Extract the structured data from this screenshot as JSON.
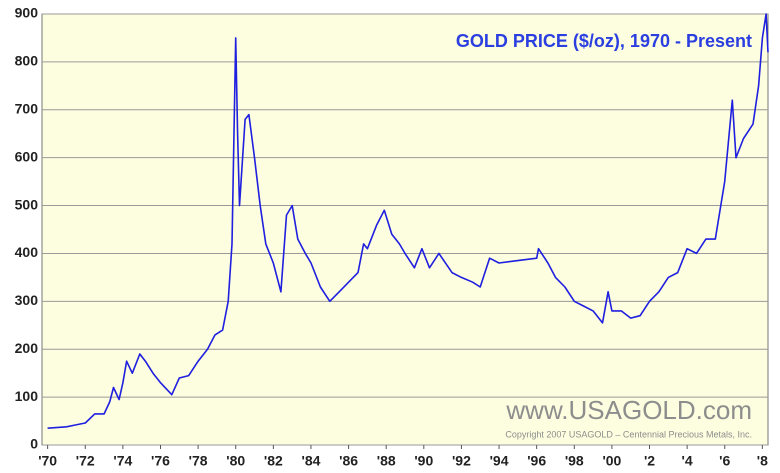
{
  "chart_data": {
    "type": "line",
    "title": "GOLD PRICE ($/oz), 1970 - Present",
    "watermark": "www.USAGOLD.com",
    "copyright": "Copyright 2007 USAGOLD – Centennial Precious Metals, Inc.",
    "x": [
      1970,
      1971,
      1971.5,
      1972,
      1972.5,
      1973,
      1973.3,
      1973.5,
      1973.8,
      1974,
      1974.2,
      1974.5,
      1974.9,
      1975.2,
      1975.6,
      1976,
      1976.6,
      1977,
      1977.5,
      1978,
      1978.5,
      1978.9,
      1979.3,
      1979.6,
      1979.8,
      1980,
      1980.1,
      1980.2,
      1980.5,
      1980.7,
      1981,
      1981.3,
      1981.6,
      1982,
      1982.4,
      1982.7,
      1983,
      1983.3,
      1983.7,
      1984,
      1984.5,
      1985,
      1985.5,
      1986,
      1986.5,
      1986.8,
      1987,
      1987.5,
      1987.9,
      1988.3,
      1988.7,
      1989,
      1989.5,
      1989.9,
      1990.3,
      1990.8,
      1991.5,
      1992,
      1992.6,
      1993,
      1993.5,
      1994,
      1995,
      1996,
      1996.1,
      1996.6,
      1997,
      1997.5,
      1998,
      1998.5,
      1999,
      1999.5,
      1999.8,
      2000,
      2000.5,
      2001,
      2001.5,
      2002,
      2002.5,
      2003,
      2003.5,
      2004,
      2004.5,
      2005,
      2005.5,
      2006,
      2006.4,
      2006.6,
      2007,
      2007.5,
      2007.8,
      2008,
      2008.2,
      2008.3
    ],
    "series": [
      {
        "name": "Gold",
        "color": "#1f1fe0",
        "values": [
          35,
          38,
          42,
          46,
          65,
          65,
          90,
          120,
          95,
          130,
          175,
          150,
          190,
          175,
          150,
          130,
          105,
          140,
          145,
          175,
          200,
          230,
          240,
          300,
          420,
          850,
          650,
          500,
          680,
          690,
          600,
          500,
          420,
          380,
          320,
          480,
          500,
          430,
          400,
          380,
          330,
          300,
          320,
          340,
          360,
          420,
          410,
          460,
          490,
          440,
          420,
          400,
          370,
          410,
          370,
          400,
          360,
          350,
          340,
          330,
          390,
          380,
          385,
          390,
          410,
          380,
          350,
          330,
          300,
          290,
          280,
          255,
          320,
          280,
          280,
          265,
          270,
          300,
          320,
          350,
          360,
          410,
          400,
          430,
          430,
          550,
          720,
          600,
          640,
          670,
          750,
          850,
          900,
          820
        ]
      }
    ],
    "xlim": [
      1969.7,
      2008.3
    ],
    "ylim": [
      0,
      900
    ],
    "xticks": [
      {
        "value": 1970,
        "label": "'70"
      },
      {
        "value": 1972,
        "label": "'72"
      },
      {
        "value": 1974,
        "label": "'74"
      },
      {
        "value": 1976,
        "label": "'76"
      },
      {
        "value": 1978,
        "label": "'78"
      },
      {
        "value": 1980,
        "label": "'80"
      },
      {
        "value": 1982,
        "label": "'82"
      },
      {
        "value": 1984,
        "label": "'84"
      },
      {
        "value": 1986,
        "label": "'86"
      },
      {
        "value": 1988,
        "label": "'88"
      },
      {
        "value": 1990,
        "label": "'90"
      },
      {
        "value": 1992,
        "label": "'92"
      },
      {
        "value": 1994,
        "label": "'94"
      },
      {
        "value": 1996,
        "label": "'96"
      },
      {
        "value": 1998,
        "label": "'98"
      },
      {
        "value": 2000,
        "label": "'00"
      },
      {
        "value": 2002,
        "label": "'2"
      },
      {
        "value": 2004,
        "label": "'4"
      },
      {
        "value": 2006,
        "label": "'6"
      },
      {
        "value": 2008,
        "label": "'8"
      }
    ],
    "yticks": [
      0,
      100,
      200,
      300,
      400,
      500,
      600,
      700,
      800,
      900
    ],
    "grid": true
  }
}
